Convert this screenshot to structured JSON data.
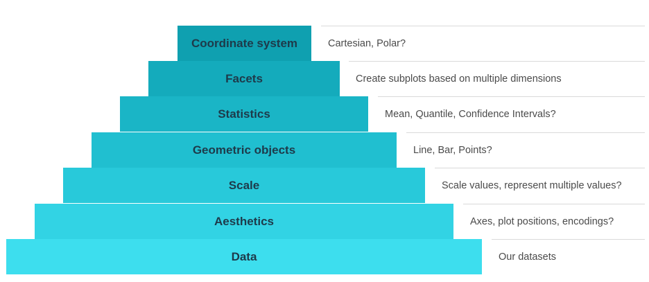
{
  "layers": [
    {
      "label": "Coordinate system",
      "description": "Cartesian, Polar?"
    },
    {
      "label": "Facets",
      "description": "Create subplots based on multiple dimensions"
    },
    {
      "label": "Statistics",
      "description": "Mean, Quantile, Confidence Intervals?"
    },
    {
      "label": "Geometric objects",
      "description": "Line, Bar, Points?"
    },
    {
      "label": "Scale",
      "description": "Scale values, represent multiple values?"
    },
    {
      "label": "Aesthetics",
      "description": "Axes, plot positions, encodings?"
    },
    {
      "label": "Data",
      "description": "Our datasets"
    }
  ],
  "colors": {
    "layer_colors": [
      "#0fa0b0",
      "#14abbc",
      "#1ab5c6",
      "#20bfd0",
      "#28c9da",
      "#32d3e4",
      "#3ddeee"
    ],
    "label_text": "#1e3a4a",
    "description_text": "#4a4a4a",
    "divider": "#d9d9d9"
  }
}
